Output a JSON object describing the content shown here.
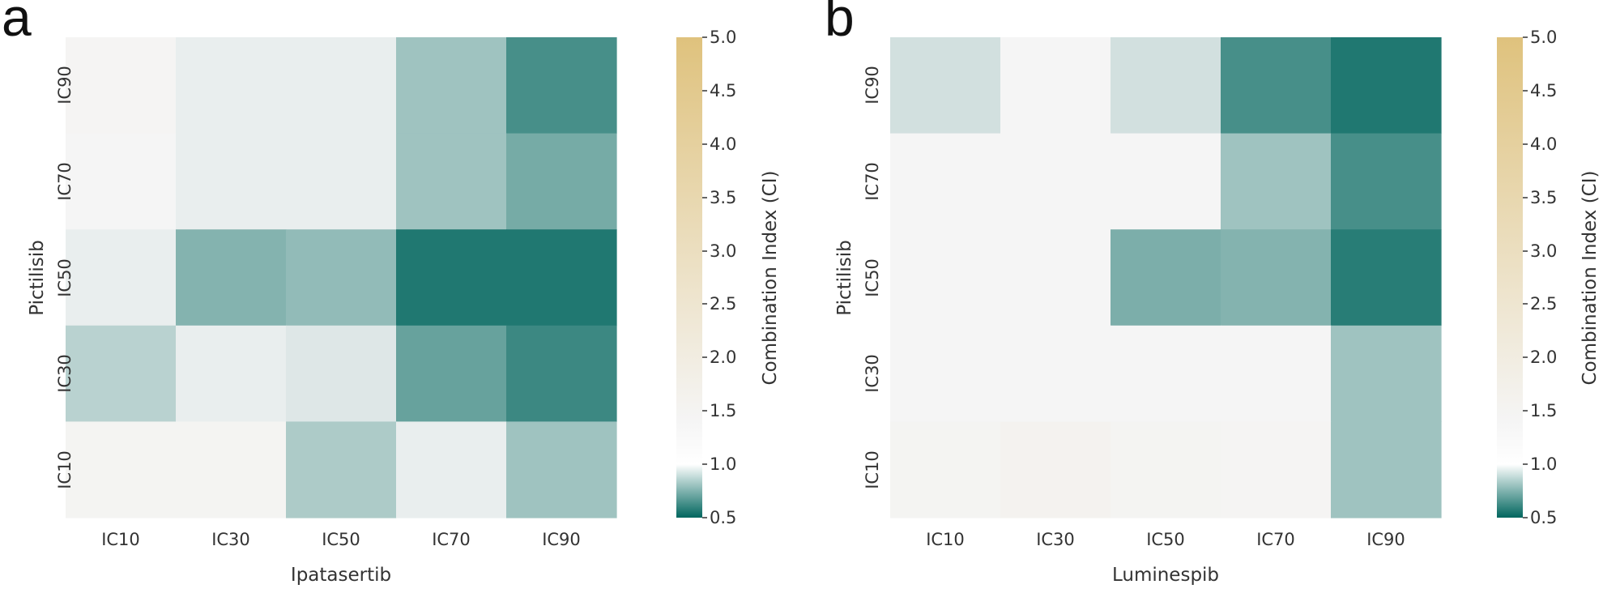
{
  "chart_data": [
    {
      "type": "heatmap",
      "panel_label": "a",
      "xlabel": "Ipatasertib",
      "ylabel": "Pictilisib",
      "x_categories": [
        "IC10",
        "IC30",
        "IC50",
        "IC70",
        "IC90"
      ],
      "y_categories": [
        "IC90",
        "IC70",
        "IC50",
        "IC30",
        "IC10"
      ],
      "values": [
        [
          1.35,
          1.25,
          1.25,
          0.95,
          0.65
        ],
        [
          1.3,
          1.25,
          1.25,
          0.95,
          0.8
        ],
        [
          1.25,
          0.85,
          0.9,
          0.55,
          0.55
        ],
        [
          1.05,
          1.25,
          1.2,
          0.75,
          0.62
        ],
        [
          1.4,
          1.4,
          1.0,
          1.25,
          0.95
        ]
      ],
      "colorbar": {
        "label": "Combination Index (CI)",
        "ticks": [
          "0.5",
          "1.0",
          "1.5",
          "2.0",
          "2.5",
          "3.0",
          "3.5",
          "4.0",
          "4.5",
          "5.0"
        ],
        "range": [
          0.5,
          5.0
        ],
        "colors": {
          "low": "#01665e",
          "white": "#f5f5f5",
          "high": "#dfc27d"
        }
      }
    },
    {
      "type": "heatmap",
      "panel_label": "b",
      "xlabel": "Luminespib",
      "ylabel": "Pictilisib",
      "x_categories": [
        "IC10",
        "IC30",
        "IC50",
        "IC70",
        "IC90"
      ],
      "y_categories": [
        "IC90",
        "IC70",
        "IC50",
        "IC30",
        "IC10"
      ],
      "values": [
        [
          1.15,
          1.3,
          1.15,
          0.65,
          0.55
        ],
        [
          1.3,
          1.3,
          1.3,
          0.95,
          0.65
        ],
        [
          1.3,
          1.3,
          0.82,
          0.85,
          0.57
        ],
        [
          1.3,
          1.3,
          1.3,
          1.3,
          0.95
        ],
        [
          1.4,
          1.5,
          1.4,
          1.35,
          0.95
        ]
      ],
      "colorbar": {
        "label": "Combination Index (CI)",
        "ticks": [
          "0.5",
          "1.0",
          "1.5",
          "2.0",
          "2.5",
          "3.0",
          "3.5",
          "4.0",
          "4.5",
          "5.0"
        ],
        "range": [
          0.5,
          5.0
        ],
        "colors": {
          "low": "#01665e",
          "white": "#f5f5f5",
          "high": "#dfc27d"
        }
      }
    }
  ]
}
